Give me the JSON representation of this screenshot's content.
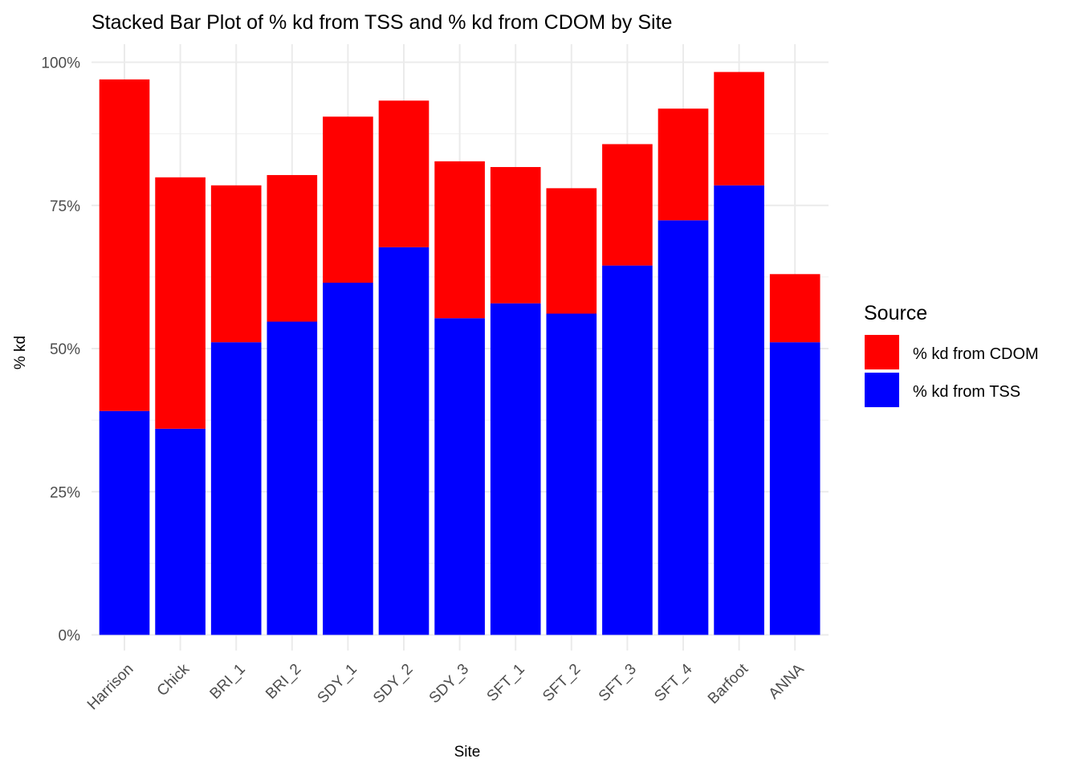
{
  "chart_data": {
    "type": "bar",
    "stacked": true,
    "title": "Stacked Bar Plot of % kd from TSS and % kd from CDOM by Site",
    "xlabel": "Site",
    "ylabel": "% kd",
    "ylim": [
      0,
      100
    ],
    "yticks": [
      "0%",
      "25%",
      "50%",
      "75%",
      "100%"
    ],
    "ytick_values": [
      0,
      25,
      50,
      75,
      100
    ],
    "grid": true,
    "categories": [
      "Harrison",
      "Chick",
      "BRI_1",
      "BRI_2",
      "SDY_1",
      "SDY_2",
      "SDY_3",
      "SFT_1",
      "SFT_2",
      "SFT_3",
      "SFT_4",
      "Barfoot",
      "ANNA"
    ],
    "series": [
      {
        "name": "% kd from TSS",
        "color": "#0000ff",
        "values": [
          39.1,
          36.0,
          51.1,
          54.7,
          61.5,
          67.7,
          55.3,
          57.9,
          56.1,
          64.5,
          72.4,
          78.5,
          51.1
        ]
      },
      {
        "name": "% kd from CDOM",
        "color": "#ff0000",
        "values": [
          57.9,
          43.9,
          27.4,
          25.6,
          29.0,
          25.6,
          27.4,
          23.8,
          21.9,
          21.2,
          19.5,
          19.8,
          11.9
        ]
      }
    ],
    "legend": {
      "title": "Source",
      "placement": "right",
      "order": [
        "% kd from CDOM",
        "% kd from TSS"
      ]
    }
  }
}
